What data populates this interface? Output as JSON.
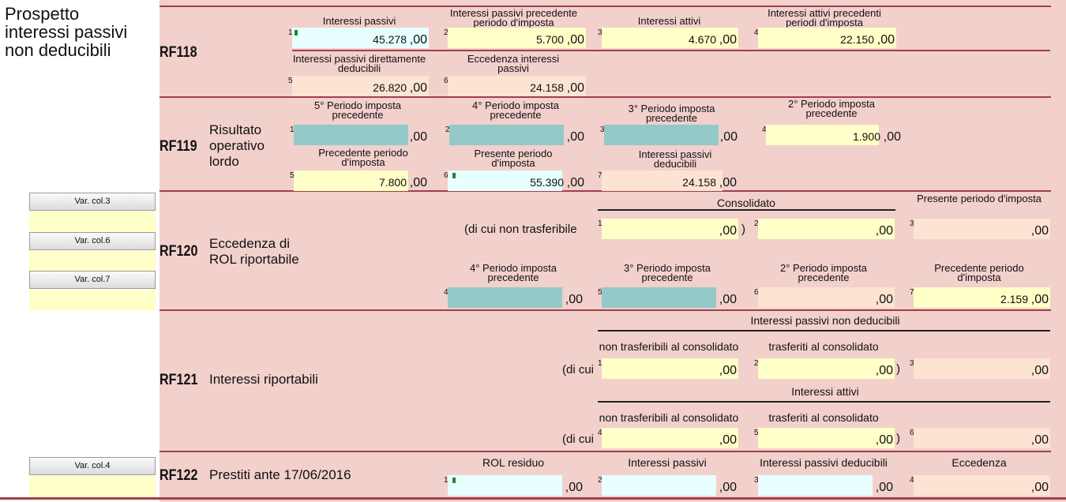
{
  "title_lines": [
    "Prospetto",
    "interessi passivi",
    "non deducibili"
  ],
  "var_buttons": [
    "Var. col.3",
    "Var. col.6",
    "Var. col.7",
    "Var. col.4"
  ],
  "rf118": {
    "code": "RF118",
    "labels": [
      "Interessi passivi",
      "Interessi passivi precedente periodo d'imposta",
      "Interessi attivi",
      "Interessi attivi precedenti periodi d'imposta",
      "Interessi passivi direttamente deducibili",
      "Eccedenza interessi passivi"
    ],
    "values": [
      "45.278",
      "5.700",
      "4.670",
      "22.150",
      "26.820",
      "24.158"
    ]
  },
  "rf119": {
    "code": "RF119",
    "desc": [
      "Risultato",
      "operativo",
      "lordo"
    ],
    "labels": [
      "5° Periodo imposta precedente",
      "4° Periodo imposta precedente",
      "3° Periodo imposta precedente",
      "2° Periodo imposta precedente",
      "Precedente periodo d'imposta",
      "Presente periodo d'imposta",
      "Interessi passivi deducibili"
    ],
    "values": [
      "",
      "",
      "",
      "1.900",
      "7.800",
      "55.390",
      "24.158"
    ]
  },
  "rf120": {
    "code": "RF120",
    "desc": [
      "Eccedenza di",
      "ROL riportabile"
    ],
    "consolidato": "Consolidato",
    "presente_label": "Presente periodo d'imposta",
    "di_cui": "(di cui non trasferibile",
    "paren": ")",
    "labels": [
      "4° Periodo imposta precedente",
      "3° Periodo imposta precedente",
      "2° Periodo imposta precedente",
      "Precedente periodo d'imposta"
    ],
    "values": [
      "",
      "",
      "",
      "",
      "",
      "",
      "2.159"
    ]
  },
  "rf121": {
    "code": "RF121",
    "desc": "Interessi riportabili",
    "group1": "Interessi passivi non deducibili",
    "group2": "Interessi attivi",
    "non_trasf": "non trasferibili al consolidato",
    "trasf": "trasferiti al consolidato",
    "di_cui": "(di cui",
    "paren": ")",
    "values": [
      "",
      "",
      "",
      "",
      "",
      ""
    ]
  },
  "rf122": {
    "code": "RF122",
    "desc": "Prestiti ante 17/06/2016",
    "labels": [
      "ROL residuo",
      "Interessi passivi",
      "Interessi passivi deducibili",
      "Eccedenza"
    ],
    "values": [
      "",
      "",
      "",
      ""
    ]
  },
  "decimals": ",00"
}
